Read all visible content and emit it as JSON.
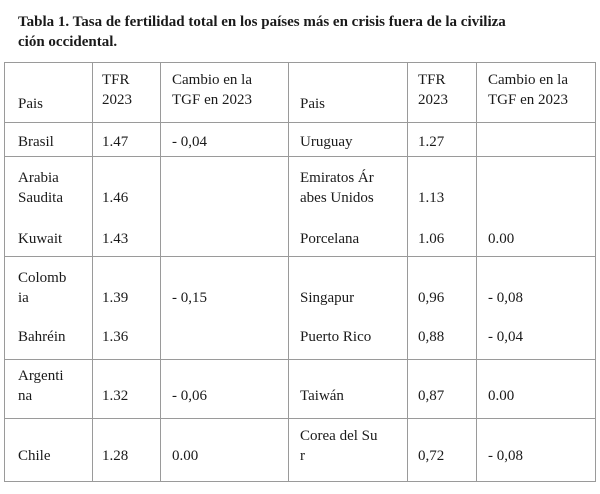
{
  "title": {
    "line1": "Tabla 1. Tasa de fertilidad total en los países más en crisis fuera de la civiliza",
    "line2": "ción occidental."
  },
  "headers": {
    "pais": "Pais",
    "tfr_l1": "TFR",
    "tfr_l2": "2023",
    "cambio_l1": "Cambio en la",
    "cambio_l2": "TGF en 2023"
  },
  "left": [
    {
      "pais": [
        "Brasil"
      ],
      "tfr": "1.47",
      "cambio": "- 0,04"
    },
    {
      "pais": [
        "Arabia",
        "Saudita"
      ],
      "tfr": "1.46",
      "cambio": ""
    },
    {
      "pais": [
        "Kuwait"
      ],
      "tfr": "1.43",
      "cambio": ""
    },
    {
      "pais": [
        "Colomb",
        "ia"
      ],
      "tfr": "1.39",
      "cambio": "- 0,15"
    },
    {
      "pais": [
        "Bahréin"
      ],
      "tfr": "1.36",
      "cambio": ""
    },
    {
      "pais": [
        "Argenti",
        "na"
      ],
      "tfr": "1.32",
      "cambio": "- 0,06"
    },
    {
      "pais": [
        "Chile"
      ],
      "tfr": "1.28",
      "cambio": "0.00"
    }
  ],
  "right": [
    {
      "pais": [
        "Uruguay"
      ],
      "tfr": "1.27",
      "cambio": ""
    },
    {
      "pais": [
        "Emiratos Ár",
        "abes Unidos"
      ],
      "tfr": "1.13",
      "cambio": ""
    },
    {
      "pais": [
        "Porcelana"
      ],
      "tfr": "1.06",
      "cambio": "0.00"
    },
    {
      "pais": [
        "Singapur"
      ],
      "tfr": "0,96",
      "cambio": "- 0,08"
    },
    {
      "pais": [
        "Puerto Rico"
      ],
      "tfr": "0,88",
      "cambio": "- 0,04"
    },
    {
      "pais": [
        "Taiwán"
      ],
      "tfr": "0,87",
      "cambio": "0.00"
    },
    {
      "pais": [
        "Corea del Su",
        "r"
      ],
      "tfr": "0,72",
      "cambio": "- 0,08"
    }
  ]
}
